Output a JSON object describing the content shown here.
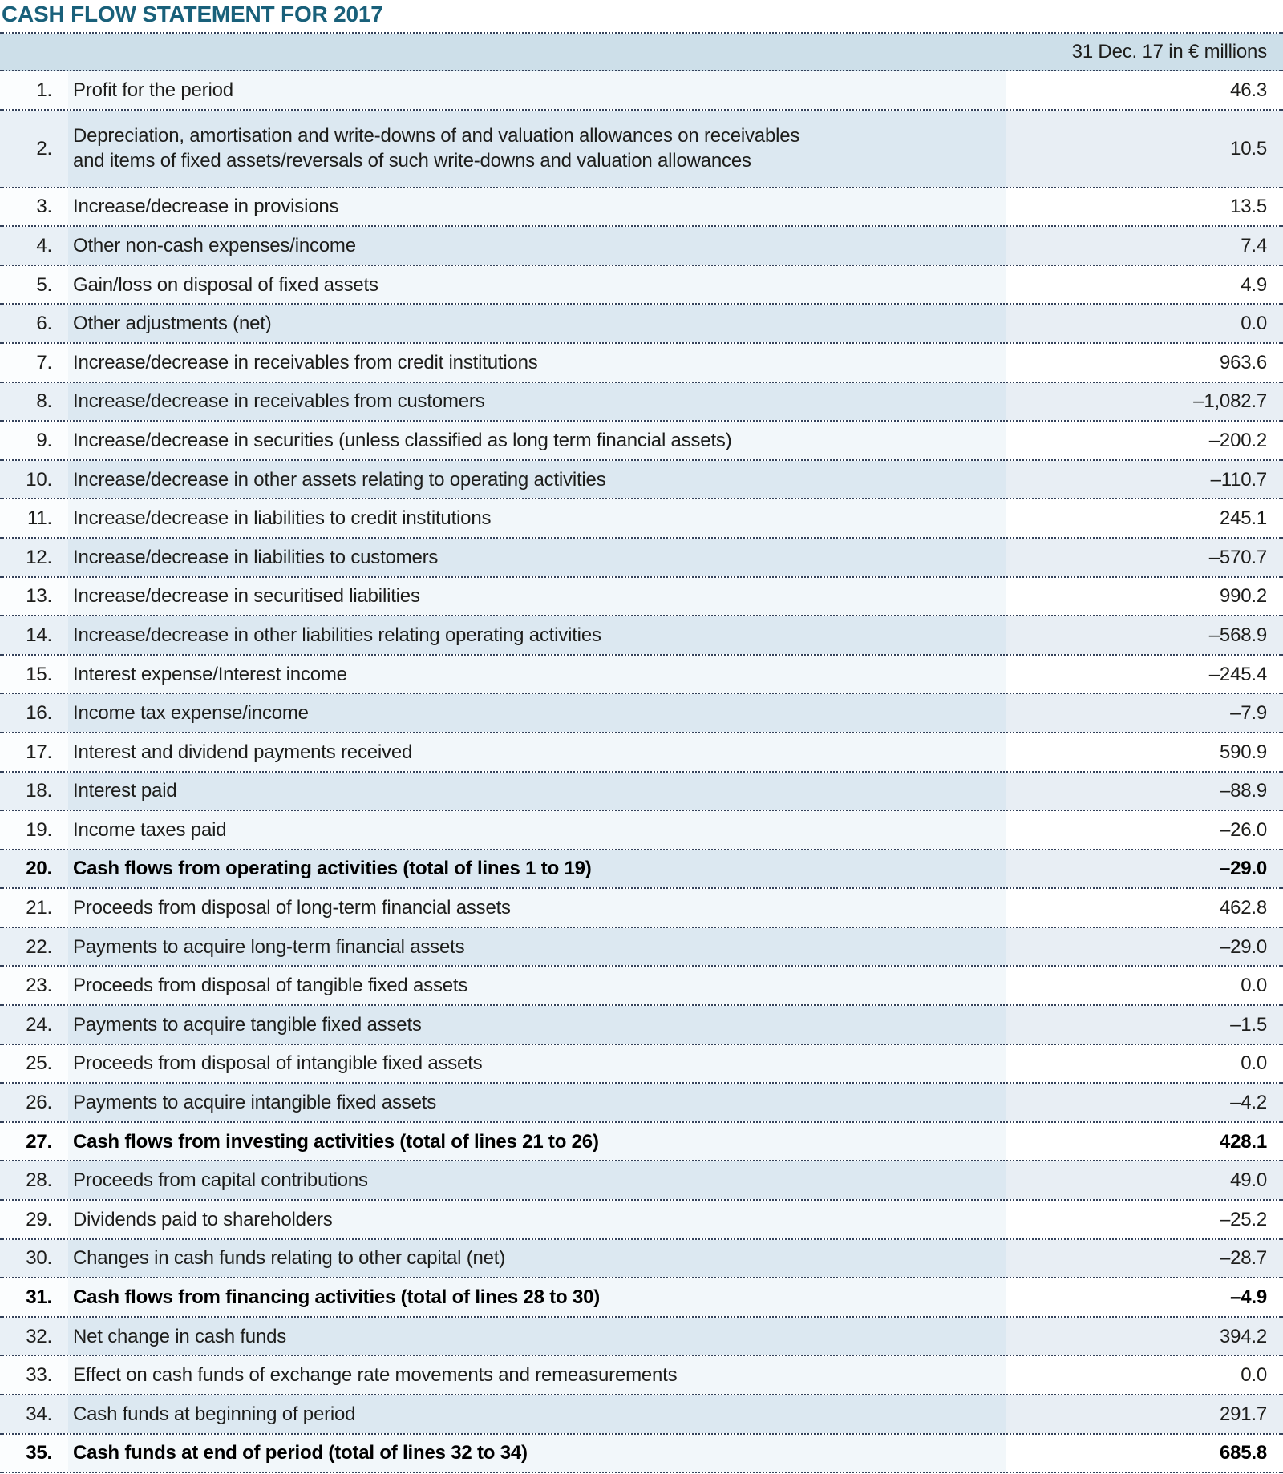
{
  "title": "CASH FLOW STATEMENT FOR 2017",
  "table": {
    "column_header": "31 Dec. 17 in € millions",
    "rows": [
      {
        "num": "1.",
        "label": [
          "Profit for the period"
        ],
        "value": "46.3",
        "bold": false
      },
      {
        "num": "2.",
        "label": [
          "Depreciation, amortisation and write-downs of and valuation allowances on receivables",
          "and items of fixed assets/reversals of such write-downs and valuation allowances"
        ],
        "value": "10.5",
        "bold": false
      },
      {
        "num": "3.",
        "label": [
          "Increase/decrease in provisions"
        ],
        "value": "13.5",
        "bold": false
      },
      {
        "num": "4.",
        "label": [
          "Other non-cash expenses/income"
        ],
        "value": "7.4",
        "bold": false
      },
      {
        "num": "5.",
        "label": [
          "Gain/loss on disposal of fixed assets"
        ],
        "value": "4.9",
        "bold": false
      },
      {
        "num": "6.",
        "label": [
          "Other adjustments (net)"
        ],
        "value": "0.0",
        "bold": false
      },
      {
        "num": "7.",
        "label": [
          "Increase/decrease in receivables from credit institutions"
        ],
        "value": "963.6",
        "bold": false
      },
      {
        "num": "8.",
        "label": [
          "Increase/decrease in receivables from customers"
        ],
        "value": "–1,082.7",
        "bold": false
      },
      {
        "num": "9.",
        "label": [
          "Increase/decrease in securities (unless classified as long term financial assets)"
        ],
        "value": "–200.2",
        "bold": false
      },
      {
        "num": "10.",
        "label": [
          "Increase/decrease in other assets relating to operating activities"
        ],
        "value": "–110.7",
        "bold": false
      },
      {
        "num": "11.",
        "label": [
          "Increase/decrease in liabilities to credit institutions"
        ],
        "value": "245.1",
        "bold": false
      },
      {
        "num": "12.",
        "label": [
          "Increase/decrease in liabilities to customers"
        ],
        "value": "–570.7",
        "bold": false
      },
      {
        "num": "13.",
        "label": [
          "Increase/decrease in securitised liabilities"
        ],
        "value": "990.2",
        "bold": false
      },
      {
        "num": "14.",
        "label": [
          "Increase/decrease in other liabilities relating operating activities"
        ],
        "value": "–568.9",
        "bold": false
      },
      {
        "num": "15.",
        "label": [
          "Interest expense/Interest income"
        ],
        "value": "–245.4",
        "bold": false
      },
      {
        "num": "16.",
        "label": [
          "Income tax expense/income"
        ],
        "value": "–7.9",
        "bold": false
      },
      {
        "num": "17.",
        "label": [
          "Interest and dividend payments received"
        ],
        "value": "590.9",
        "bold": false
      },
      {
        "num": "18.",
        "label": [
          "Interest paid"
        ],
        "value": "–88.9",
        "bold": false
      },
      {
        "num": "19.",
        "label": [
          "Income taxes paid"
        ],
        "value": "–26.0",
        "bold": false
      },
      {
        "num": "20.",
        "label": [
          "Cash flows from operating activities (total of lines 1 to 19)"
        ],
        "value": "–29.0",
        "bold": true
      },
      {
        "num": "21.",
        "label": [
          "Proceeds from disposal of long-term financial assets"
        ],
        "value": "462.8",
        "bold": false
      },
      {
        "num": "22.",
        "label": [
          "Payments to acquire long-term financial assets"
        ],
        "value": "–29.0",
        "bold": false
      },
      {
        "num": "23.",
        "label": [
          "Proceeds from disposal of tangible fixed assets"
        ],
        "value": "0.0",
        "bold": false
      },
      {
        "num": "24.",
        "label": [
          "Payments to acquire tangible fixed assets"
        ],
        "value": "–1.5",
        "bold": false
      },
      {
        "num": "25.",
        "label": [
          "Proceeds from disposal of intangible fixed assets"
        ],
        "value": "0.0",
        "bold": false
      },
      {
        "num": "26.",
        "label": [
          "Payments to acquire intangible fixed assets"
        ],
        "value": "–4.2",
        "bold": false
      },
      {
        "num": "27.",
        "label": [
          "Cash flows from investing activities (total of lines 21 to 26)"
        ],
        "value": "428.1",
        "bold": true
      },
      {
        "num": "28.",
        "label": [
          "Proceeds from capital contributions"
        ],
        "value": "49.0",
        "bold": false
      },
      {
        "num": "29.",
        "label": [
          "Dividends paid to shareholders"
        ],
        "value": "–25.2",
        "bold": false
      },
      {
        "num": "30.",
        "label": [
          "Changes in cash funds relating to other capital (net)"
        ],
        "value": "–28.7",
        "bold": false
      },
      {
        "num": "31.",
        "label": [
          "Cash flows from financing activities (total of lines 28 to 30)"
        ],
        "value": "–4.9",
        "bold": true
      },
      {
        "num": "32.",
        "label": [
          "Net change in cash funds"
        ],
        "value": "394.2",
        "bold": false
      },
      {
        "num": "33.",
        "label": [
          "Effect on cash funds of exchange rate movements and remeasurements"
        ],
        "value": "0.0",
        "bold": false
      },
      {
        "num": "34.",
        "label": [
          "Cash funds at beginning of period"
        ],
        "value": "291.7",
        "bold": false
      },
      {
        "num": "35.",
        "label": [
          "Cash funds at end of period (total of lines 32 to 34)"
        ],
        "value": "685.8",
        "bold": true
      }
    ]
  },
  "colors": {
    "title": "#19607a",
    "dotted_border": "#33415a",
    "header_bg": "#cddfe9",
    "blue_row_number": "#e9f0f6",
    "blue_row_label": "#dce8f1",
    "blue_row_value": "#e8eef4",
    "light_row_number": "#fbfdfe",
    "light_row_label": "#f2f7fa",
    "light_row_value": "#ffffff",
    "text": "#1d1d1b"
  }
}
